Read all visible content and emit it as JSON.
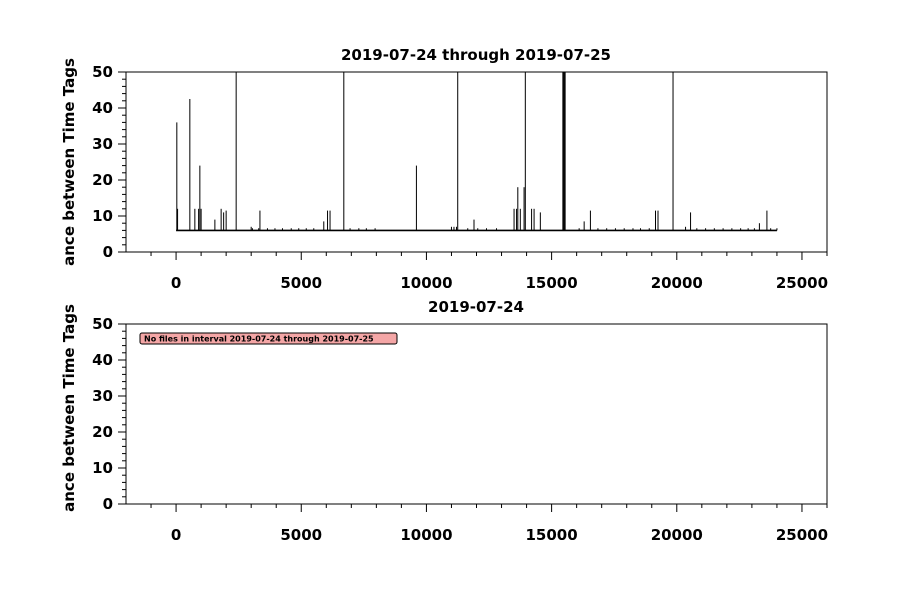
{
  "chart_data": [
    {
      "type": "line",
      "title": "2019-07-24 through 2019-07-25",
      "xlabel": "",
      "ylabel": "ance between Time Tags",
      "xlim": [
        -2000,
        26000
      ],
      "ylim": [
        0,
        50
      ],
      "x_ticks": [
        0,
        5000,
        10000,
        15000,
        20000,
        25000
      ],
      "x_tick_labels": [
        "0",
        "5000",
        "10000",
        "15000",
        "20000",
        "25000"
      ],
      "y_ticks": [
        0,
        10,
        20,
        30,
        40,
        50
      ],
      "y_tick_labels": [
        "0",
        "10",
        "20",
        "30",
        "40",
        "50"
      ],
      "grid": false,
      "baseline": 6,
      "x_range": [
        0,
        24000
      ],
      "spikes": [
        {
          "x": 30,
          "y": 36
        },
        {
          "x": 60,
          "y": 12
        },
        {
          "x": 550,
          "y": 42.5
        },
        {
          "x": 750,
          "y": 12
        },
        {
          "x": 950,
          "y": 24
        },
        {
          "x": 900,
          "y": 12
        },
        {
          "x": 1000,
          "y": 12
        },
        {
          "x": 1550,
          "y": 9
        },
        {
          "x": 1800,
          "y": 12
        },
        {
          "x": 1900,
          "y": 11
        },
        {
          "x": 2000,
          "y": 11.5
        },
        {
          "x": 2400,
          "y": 50
        },
        {
          "x": 3000,
          "y": 7
        },
        {
          "x": 3350,
          "y": 11.5
        },
        {
          "x": 5900,
          "y": 8.5
        },
        {
          "x": 6050,
          "y": 11.5
        },
        {
          "x": 6150,
          "y": 11.5
        },
        {
          "x": 6700,
          "y": 50
        },
        {
          "x": 9600,
          "y": 24
        },
        {
          "x": 11000,
          "y": 7
        },
        {
          "x": 11100,
          "y": 7
        },
        {
          "x": 11200,
          "y": 7
        },
        {
          "x": 11250,
          "y": 50
        },
        {
          "x": 11900,
          "y": 9
        },
        {
          "x": 13500,
          "y": 12
        },
        {
          "x": 13600,
          "y": 12
        },
        {
          "x": 13650,
          "y": 18
        },
        {
          "x": 13750,
          "y": 12
        },
        {
          "x": 13900,
          "y": 18
        },
        {
          "x": 13950,
          "y": 50
        },
        {
          "x": 14200,
          "y": 12
        },
        {
          "x": 14300,
          "y": 12
        },
        {
          "x": 14550,
          "y": 11
        },
        {
          "x": 15450,
          "y": 50
        },
        {
          "x": 15480,
          "y": 50
        },
        {
          "x": 15510,
          "y": 50
        },
        {
          "x": 15540,
          "y": 50
        },
        {
          "x": 16300,
          "y": 8.5
        },
        {
          "x": 16550,
          "y": 11.5
        },
        {
          "x": 19150,
          "y": 11.5
        },
        {
          "x": 19250,
          "y": 11.5
        },
        {
          "x": 19850,
          "y": 50
        },
        {
          "x": 20550,
          "y": 11
        },
        {
          "x": 20350,
          "y": 7
        },
        {
          "x": 23600,
          "y": 11.5
        },
        {
          "x": 23300,
          "y": 8
        }
      ],
      "small_ticks": [
        3050,
        3300,
        3650,
        3950,
        4250,
        4600,
        4900,
        5200,
        5500,
        6950,
        7300,
        7600,
        7950,
        11650,
        12050,
        12400,
        12800,
        16100,
        16850,
        17200,
        17550,
        17900,
        18250,
        18550,
        18900,
        20800,
        21150,
        21500,
        21850,
        22200,
        22550,
        22850,
        23100,
        23750,
        24000
      ]
    },
    {
      "type": "line",
      "title": "2019-07-24",
      "xlabel": "",
      "ylabel": "ance between Time Tags",
      "xlim": [
        -2000,
        26000
      ],
      "ylim": [
        0,
        50
      ],
      "x_ticks": [
        0,
        5000,
        10000,
        15000,
        20000,
        25000
      ],
      "x_tick_labels": [
        "0",
        "5000",
        "10000",
        "15000",
        "20000",
        "25000"
      ],
      "y_ticks": [
        0,
        10,
        20,
        30,
        40,
        50
      ],
      "y_tick_labels": [
        "0",
        "10",
        "20",
        "30",
        "40",
        "50"
      ],
      "grid": false,
      "annotation": "No files in interval 2019-07-24 through 2019-07-25",
      "annotation_color": "#f4a6a6"
    }
  ]
}
